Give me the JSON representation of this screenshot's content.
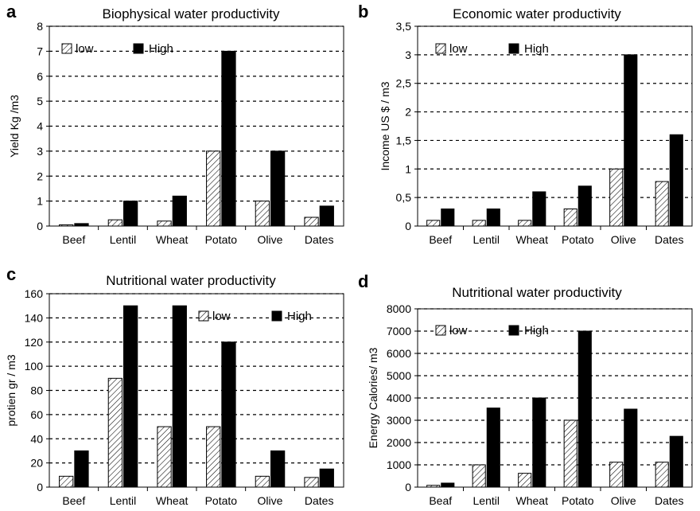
{
  "chart_data": [
    {
      "panel": "a",
      "type": "bar",
      "title": "Biophysical water productivity",
      "ylabel": "Yield Kg /m3",
      "xlabel": "",
      "categories": [
        "Beef",
        "Lentil",
        "Wheat",
        "Potato",
        "Olive",
        "Dates"
      ],
      "ylim": [
        0,
        8
      ],
      "yticks": [
        0,
        1,
        2,
        3,
        4,
        5,
        6,
        7,
        8
      ],
      "ytick_labels": [
        "0",
        "1",
        "2",
        "3",
        "4",
        "5",
        "6",
        "7",
        "8"
      ],
      "legend": "top-left",
      "grid": "horizontal dashed",
      "series": [
        {
          "name": "low",
          "style": "hatched",
          "values": [
            0.05,
            0.25,
            0.2,
            3.0,
            1.0,
            0.35
          ]
        },
        {
          "name": "High",
          "style": "solid",
          "values": [
            0.1,
            1.0,
            1.2,
            7.0,
            3.0,
            0.8
          ]
        }
      ]
    },
    {
      "panel": "b",
      "type": "bar",
      "title": "Economic water productivity",
      "ylabel": "Income US $ / m3",
      "xlabel": "",
      "categories": [
        "Beef",
        "Lentil",
        "Wheat",
        "Potato",
        "Olive",
        "Dates"
      ],
      "ylim": [
        0,
        3.5
      ],
      "yticks": [
        0,
        0.5,
        1,
        1.5,
        2,
        2.5,
        3,
        3.5
      ],
      "ytick_labels": [
        "0",
        "0,5",
        "1",
        "1,5",
        "2",
        "2,5",
        "3",
        "3,5"
      ],
      "legend": "top-left",
      "grid": "horizontal dashed",
      "series": [
        {
          "name": "low",
          "style": "hatched",
          "values": [
            0.1,
            0.1,
            0.1,
            0.3,
            1.0,
            0.78
          ]
        },
        {
          "name": "High",
          "style": "solid",
          "values": [
            0.3,
            0.3,
            0.6,
            0.7,
            3.0,
            1.6
          ]
        }
      ]
    },
    {
      "panel": "c",
      "type": "bar",
      "title": "Nutritional water productivity",
      "ylabel": "protien gr / m3",
      "xlabel": "",
      "categories": [
        "Beef",
        "Lentil",
        "Wheat",
        "Potato",
        "Olive",
        "Dates"
      ],
      "ylim": [
        0,
        160
      ],
      "yticks": [
        0,
        20,
        40,
        60,
        80,
        100,
        120,
        140,
        160
      ],
      "ytick_labels": [
        "0",
        "20",
        "40",
        "60",
        "80",
        "100",
        "120",
        "140",
        "160"
      ],
      "legend": "top-right",
      "grid": "horizontal dashed",
      "series": [
        {
          "name": "low",
          "style": "hatched",
          "values": [
            9,
            90,
            50,
            50,
            9,
            8
          ]
        },
        {
          "name": "High",
          "style": "solid",
          "values": [
            30,
            150,
            150,
            120,
            30,
            15
          ]
        }
      ]
    },
    {
      "panel": "d",
      "type": "bar",
      "title": "Nutritional water productivity",
      "ylabel": "Energy Calories/ m3",
      "xlabel": "",
      "categories": [
        "Beaf",
        "Lentil",
        "Wheat",
        "Potato",
        "Olive",
        "Dates"
      ],
      "ylim": [
        0,
        8000
      ],
      "yticks": [
        0,
        1000,
        2000,
        3000,
        4000,
        5000,
        6000,
        7000,
        8000
      ],
      "ytick_labels": [
        "0",
        "1000",
        "2000",
        "3000",
        "4000",
        "5000",
        "6000",
        "7000",
        "8000"
      ],
      "legend": "top-left",
      "grid": "horizontal dashed",
      "series": [
        {
          "name": "low",
          "style": "hatched",
          "values": [
            80,
            1000,
            620,
            3000,
            1120,
            1120
          ]
        },
        {
          "name": "High",
          "style": "solid",
          "values": [
            180,
            3550,
            4000,
            7000,
            3500,
            2280
          ]
        }
      ]
    }
  ]
}
